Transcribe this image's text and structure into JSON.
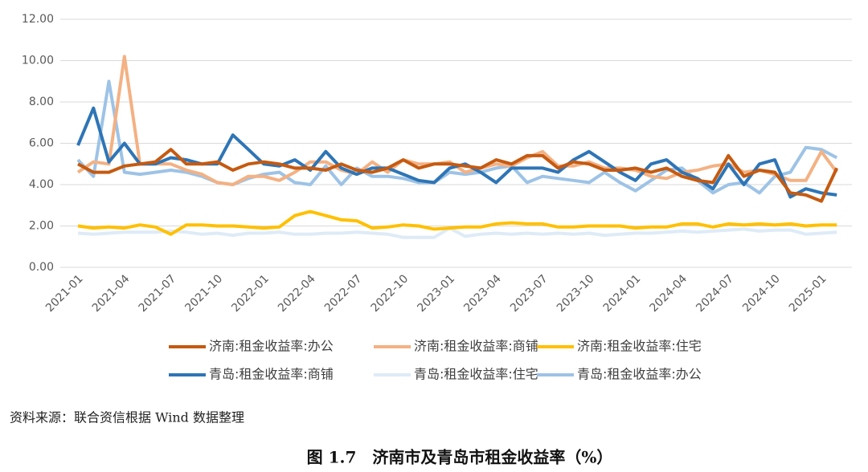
{
  "chart_data": {
    "type": "line",
    "title": "图 1.7　济南市及青岛市租金收益率（%）",
    "source": "资料来源：联合资信根据 Wind 数据整理",
    "categories": [
      "2021-01",
      null,
      null,
      "2021-04",
      null,
      null,
      "2021-07",
      null,
      null,
      "2021-10",
      null,
      null,
      "2022-01",
      null,
      null,
      "2022-04",
      null,
      null,
      "2022-07",
      null,
      null,
      "2022-10",
      null,
      null,
      "2023-01",
      null,
      null,
      "2023-04",
      null,
      null,
      "2023-07",
      null,
      null,
      "2023-10",
      null,
      null,
      "2024-01",
      null,
      null,
      "2024-04",
      null,
      null,
      "2024-07",
      null,
      null,
      "2024-10",
      null,
      null,
      "2025-01",
      null
    ],
    "ylim": [
      0,
      12
    ],
    "yticks": [
      {
        "value": 0,
        "label": "0.00"
      },
      {
        "value": 2,
        "label": "2.00"
      },
      {
        "value": 4,
        "label": "4.00"
      },
      {
        "value": 6,
        "label": "6.00"
      },
      {
        "value": 8,
        "label": "8.00"
      },
      {
        "value": 10,
        "label": "10.00"
      },
      {
        "value": 12,
        "label": "12.00"
      }
    ],
    "grid": true,
    "series": [
      {
        "name": "济南:租金收益率:办公",
        "color": "#c55a11",
        "values": [
          5.0,
          4.6,
          4.6,
          4.9,
          5.0,
          5.1,
          5.7,
          5.0,
          5.0,
          5.1,
          4.7,
          5.0,
          5.1,
          5.0,
          4.8,
          4.8,
          4.7,
          5.0,
          4.7,
          4.6,
          4.8,
          5.2,
          4.8,
          5.0,
          5.0,
          4.9,
          4.8,
          5.2,
          5.0,
          5.4,
          5.4,
          4.8,
          5.1,
          5.0,
          4.7,
          4.7,
          4.8,
          4.6,
          4.8,
          4.4,
          4.2,
          4.1,
          5.4,
          4.4,
          4.7,
          4.6,
          3.6,
          3.5,
          3.2,
          4.8
        ]
      },
      {
        "name": "济南:租金收益率:商铺",
        "color": "#f4b183",
        "values": [
          4.6,
          5.1,
          5.0,
          10.2,
          5.0,
          5.0,
          5.0,
          4.7,
          4.5,
          4.1,
          4.0,
          4.4,
          4.4,
          4.2,
          4.6,
          5.1,
          5.1,
          4.7,
          4.5,
          5.1,
          4.6,
          5.2,
          5.0,
          5.0,
          5.1,
          4.6,
          4.8,
          5.0,
          4.9,
          5.3,
          5.6,
          4.9,
          4.9,
          5.1,
          4.8,
          4.8,
          4.7,
          4.4,
          4.3,
          4.6,
          4.7,
          4.9,
          5.0,
          4.6,
          4.7,
          4.5,
          4.2,
          4.2,
          5.6,
          4.6
        ]
      },
      {
        "name": "济南:租金收益率:住宅",
        "color": "#ffc000",
        "values": [
          2.0,
          1.9,
          1.95,
          1.9,
          2.05,
          1.95,
          1.6,
          2.05,
          2.05,
          2.0,
          2.0,
          1.95,
          1.9,
          1.95,
          2.5,
          2.7,
          2.5,
          2.3,
          2.25,
          1.9,
          1.95,
          2.05,
          2.0,
          1.85,
          1.9,
          1.95,
          1.95,
          2.1,
          2.15,
          2.1,
          2.1,
          1.95,
          1.95,
          2.0,
          2.0,
          2.0,
          1.9,
          1.95,
          1.95,
          2.1,
          2.1,
          1.95,
          2.1,
          2.05,
          2.1,
          2.05,
          2.1,
          2.0,
          2.05,
          2.05
        ]
      },
      {
        "name": "青岛:租金收益率:商铺",
        "color": "#2e75b6",
        "values": [
          5.9,
          7.7,
          5.1,
          6.0,
          5.0,
          5.0,
          5.3,
          5.2,
          5.0,
          5.0,
          6.4,
          5.7,
          5.0,
          4.9,
          5.2,
          4.7,
          5.6,
          4.8,
          4.5,
          4.8,
          4.8,
          4.5,
          4.2,
          4.1,
          4.8,
          5.0,
          4.6,
          4.1,
          4.8,
          4.8,
          4.8,
          4.6,
          5.2,
          5.6,
          5.1,
          4.6,
          4.2,
          5.0,
          5.2,
          4.6,
          4.3,
          3.8,
          5.0,
          4.0,
          5.0,
          5.2,
          3.4,
          3.8,
          3.6,
          3.5
        ]
      },
      {
        "name": "青岛:租金收益率:住宅",
        "color": "#deebf7",
        "values": [
          1.65,
          1.6,
          1.65,
          1.7,
          1.7,
          1.7,
          1.75,
          1.7,
          1.6,
          1.65,
          1.55,
          1.65,
          1.65,
          1.7,
          1.6,
          1.6,
          1.65,
          1.65,
          1.7,
          1.65,
          1.6,
          1.45,
          1.45,
          1.45,
          1.9,
          1.5,
          1.6,
          1.65,
          1.6,
          1.65,
          1.6,
          1.65,
          1.6,
          1.65,
          1.55,
          1.6,
          1.65,
          1.65,
          1.7,
          1.75,
          1.7,
          1.75,
          1.8,
          1.85,
          1.75,
          1.8,
          1.8,
          1.6,
          1.65,
          1.7
        ]
      },
      {
        "name": "青岛:租金收益率:办公",
        "color": "#9dc3e6",
        "values": [
          5.2,
          4.4,
          9.0,
          4.6,
          4.5,
          4.6,
          4.7,
          4.6,
          4.4,
          4.1,
          4.0,
          4.3,
          4.5,
          4.6,
          4.1,
          4.0,
          4.9,
          4.0,
          4.8,
          4.4,
          4.4,
          4.3,
          4.1,
          4.1,
          4.6,
          4.5,
          4.6,
          4.8,
          4.9,
          4.1,
          4.4,
          4.3,
          4.2,
          4.1,
          4.6,
          4.1,
          3.7,
          4.2,
          4.7,
          4.8,
          4.2,
          3.6,
          4.0,
          4.1,
          3.6,
          4.4,
          4.6,
          5.8,
          5.7,
          5.3
        ]
      }
    ]
  }
}
